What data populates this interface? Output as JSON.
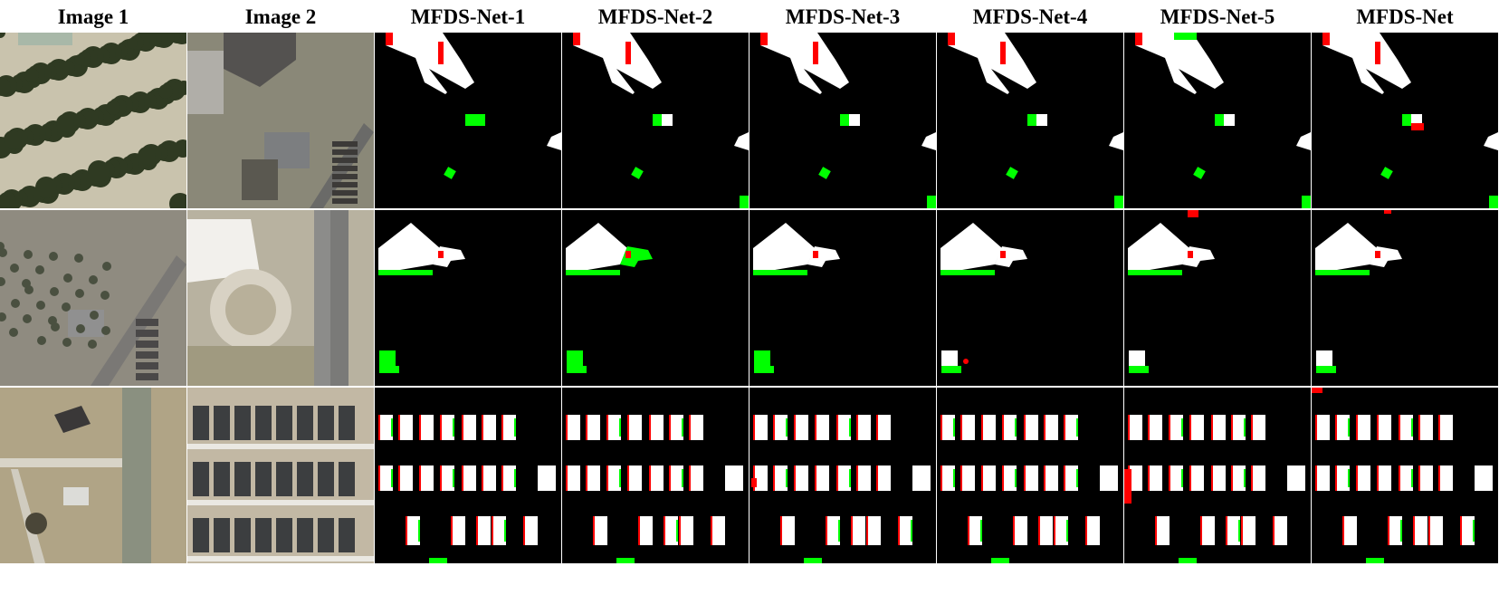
{
  "columns": [
    {
      "id": "img1",
      "label": "Image 1",
      "kind": "photo"
    },
    {
      "id": "img2",
      "label": "Image 2",
      "kind": "photo"
    },
    {
      "id": "net1",
      "label": "MFDS-Net-1",
      "kind": "map"
    },
    {
      "id": "net2",
      "label": "MFDS-Net-2",
      "kind": "map"
    },
    {
      "id": "net3",
      "label": "MFDS-Net-3",
      "kind": "map"
    },
    {
      "id": "net4",
      "label": "MFDS-Net-4",
      "kind": "map"
    },
    {
      "id": "net5",
      "label": "MFDS-Net-5",
      "kind": "map"
    },
    {
      "id": "net",
      "label": "MFDS-Net",
      "kind": "map"
    }
  ],
  "rows": 3,
  "colors": {
    "background": "#ffffff",
    "map_background": "#000000",
    "true_positive": "#ffffff",
    "false_positive": "#ff0000",
    "false_negative": "#00ff00"
  }
}
